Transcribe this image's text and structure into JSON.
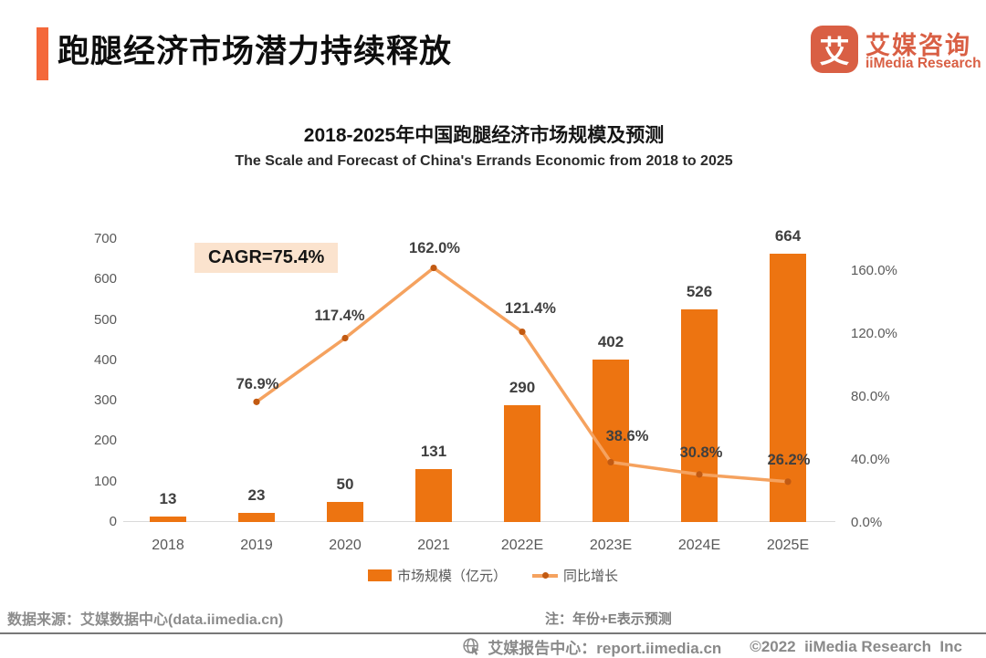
{
  "header": {
    "title": "跑腿经济市场潜力持续释放",
    "logo": {
      "glyph": "艾",
      "brand_cn": "艾媒咨询",
      "brand_en": "iiMedia Research"
    }
  },
  "chart_data": {
    "type": "bar+line combo",
    "title": "2018-2025年中国跑腿经济市场规模及预测",
    "subtitle": "The Scale and Forecast of China's Errands Economic from 2018 to 2025",
    "annotation": "CAGR=75.4%",
    "categories": [
      "2018",
      "2019",
      "2020",
      "2021",
      "2022E",
      "2023E",
      "2024E",
      "2025E"
    ],
    "series": [
      {
        "name": "市场规模（亿元）",
        "type": "bar",
        "values": [
          13,
          23,
          50,
          131,
          290,
          402,
          526,
          664
        ],
        "labels": [
          "13",
          "23",
          "50",
          "131",
          "290",
          "402",
          "526",
          "664"
        ],
        "color": "#ED7411"
      },
      {
        "name": "同比增长",
        "type": "line",
        "values": [
          null,
          76.9,
          117.4,
          162.0,
          121.4,
          38.6,
          30.8,
          26.2
        ],
        "labels": [
          null,
          "76.9%",
          "117.4%",
          "162.0%",
          "121.4%",
          "38.6%",
          "30.8%",
          "26.2%"
        ],
        "color": "#F5A25F",
        "marker_color": "#C25A12"
      }
    ],
    "left_axis": {
      "min": 0,
      "max": 700,
      "step": 100,
      "ticks": [
        "700",
        "600",
        "500",
        "400",
        "300",
        "200",
        "100",
        "0"
      ]
    },
    "right_axis": {
      "min": 0,
      "max": 160,
      "step": 40,
      "ticks": [
        "160.0%",
        "120.0%",
        "80.0%",
        "40.0%",
        "0.0%"
      ]
    },
    "legend": [
      "市场规模（亿元）",
      "同比增长"
    ],
    "grid": "off",
    "legend_position": "bottom-center"
  },
  "footer": {
    "source": "数据来源：艾媒数据中心(data.iimedia.cn)",
    "note": "注：年份+E表示预测",
    "report_center": "艾媒报告中心：report.iimedia.cn",
    "copyright": "©2022  iiMedia Research  Inc"
  },
  "colors": {
    "accent_bar": "#F4683A",
    "brand": "#D95F44",
    "bar": "#ED7411",
    "line": "#F5A25F",
    "marker": "#C25A12",
    "cagr_badge_bg": "#FBE3CE",
    "axis_text": "#595959",
    "footer_text": "#8C8C8C"
  }
}
